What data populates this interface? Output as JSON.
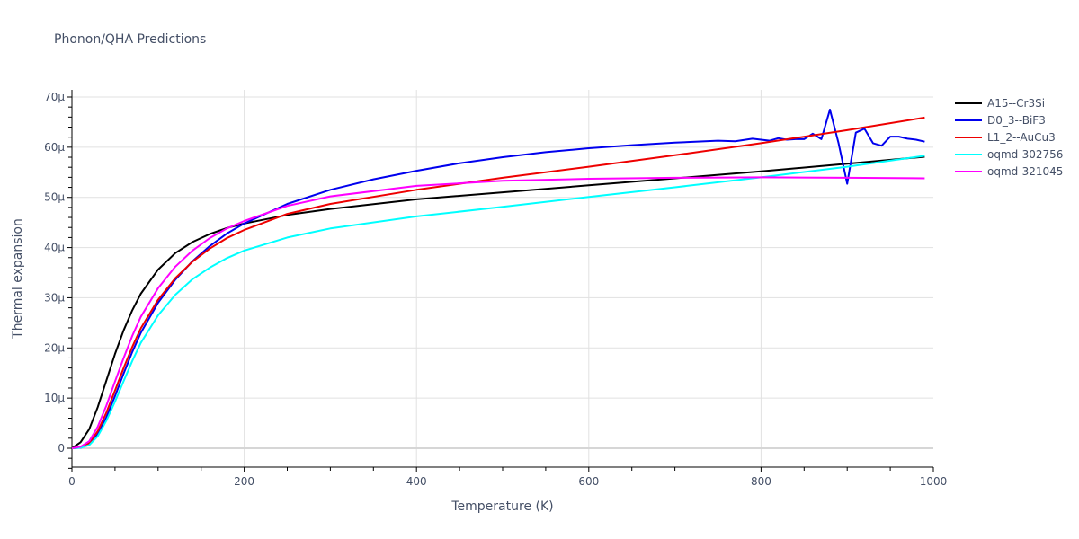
{
  "title": "Phonon/QHA Predictions",
  "chart_data": {
    "type": "line",
    "title": "Phonon/QHA Predictions",
    "xlabel": "Temperature (K)",
    "ylabel": "Thermal expansion",
    "xlim": [
      0,
      1000
    ],
    "ylim": [
      -4e-06,
      7.1e-05
    ],
    "grid": true,
    "legend_position": "right",
    "x_ticks": [
      0,
      200,
      400,
      600,
      800,
      1000
    ],
    "x_tick_labels": [
      "0",
      "200",
      "400",
      "600",
      "800",
      "1000"
    ],
    "y_ticks": [
      0,
      1e-05,
      2e-05,
      3e-05,
      4e-05,
      5e-05,
      6e-05,
      7e-05
    ],
    "y_tick_labels": [
      "0",
      "10µ",
      "20µ",
      "30µ",
      "40µ",
      "50µ",
      "60µ",
      "70µ"
    ],
    "series": [
      {
        "name": "A15--Cr3Si",
        "color": "#000000",
        "x": [
          0,
          10,
          20,
          30,
          40,
          50,
          60,
          70,
          80,
          100,
          120,
          140,
          160,
          180,
          200,
          250,
          300,
          400,
          500,
          600,
          700,
          800,
          900,
          990
        ],
        "y": [
          0,
          1.2,
          3.8,
          8.2,
          13.5,
          18.8,
          23.5,
          27.5,
          30.8,
          35.6,
          38.9,
          41.1,
          42.7,
          43.9,
          44.8,
          46.5,
          47.7,
          49.6,
          51.0,
          52.4,
          53.8,
          55.2,
          56.7,
          58.1
        ]
      },
      {
        "name": "D0_3--BiF3",
        "color": "#0000ee",
        "x": [
          0,
          10,
          20,
          30,
          40,
          50,
          60,
          70,
          80,
          100,
          120,
          140,
          160,
          180,
          200,
          250,
          300,
          350,
          400,
          450,
          500,
          550,
          600,
          650,
          700,
          750,
          770,
          790,
          810,
          820,
          830,
          840,
          850,
          860,
          870,
          880,
          890,
          900,
          910,
          920,
          930,
          940,
          950,
          960,
          970,
          980,
          990
        ],
        "y": [
          0,
          0.1,
          0.7,
          2.8,
          6.2,
          10.4,
          14.9,
          19.2,
          23.0,
          29.0,
          33.6,
          37.3,
          40.3,
          42.8,
          44.8,
          48.7,
          51.5,
          53.6,
          55.3,
          56.8,
          58.0,
          59.0,
          59.8,
          60.4,
          60.9,
          61.3,
          61.2,
          61.7,
          61.3,
          61.8,
          61.5,
          61.6,
          61.6,
          62.7,
          61.6,
          67.5,
          60.8,
          52.7,
          62.9,
          63.7,
          60.8,
          60.3,
          62.1,
          62.1,
          61.7,
          61.5,
          61.1
        ]
      },
      {
        "name": "L1_2--AuCu3",
        "color": "#ee0000",
        "x": [
          0,
          10,
          20,
          30,
          40,
          50,
          60,
          70,
          80,
          100,
          120,
          140,
          160,
          180,
          200,
          250,
          300,
          400,
          500,
          600,
          700,
          800,
          900,
          990
        ],
        "y": [
          0,
          0.2,
          1.0,
          3.4,
          7.1,
          11.5,
          16.0,
          20.2,
          23.9,
          29.6,
          33.9,
          37.2,
          39.8,
          41.9,
          43.5,
          46.7,
          48.7,
          51.5,
          53.9,
          56.1,
          58.4,
          60.8,
          63.4,
          65.9
        ]
      },
      {
        "name": "oqmd-302756",
        "color": "#00ffff",
        "x": [
          0,
          10,
          20,
          30,
          40,
          50,
          60,
          70,
          80,
          100,
          120,
          140,
          160,
          180,
          200,
          250,
          300,
          400,
          500,
          600,
          700,
          800,
          900,
          990
        ],
        "y": [
          0,
          0.1,
          0.6,
          2.4,
          5.5,
          9.3,
          13.4,
          17.4,
          21.0,
          26.5,
          30.6,
          33.7,
          36.0,
          37.9,
          39.4,
          42.0,
          43.8,
          46.2,
          48.1,
          50.1,
          52.0,
          54.0,
          56.1,
          58.3
        ]
      },
      {
        "name": "oqmd-321045",
        "color": "#ff00ff",
        "x": [
          0,
          10,
          20,
          30,
          40,
          50,
          60,
          70,
          80,
          100,
          120,
          140,
          160,
          180,
          200,
          250,
          300,
          400,
          500,
          600,
          700,
          800,
          900,
          990
        ],
        "y": [
          0,
          0.3,
          1.4,
          4.3,
          8.5,
          13.3,
          18.0,
          22.4,
          26.2,
          31.9,
          36.2,
          39.4,
          41.9,
          43.8,
          45.3,
          48.3,
          50.2,
          52.3,
          53.3,
          53.7,
          53.9,
          54.0,
          53.9,
          53.8
        ]
      }
    ]
  }
}
